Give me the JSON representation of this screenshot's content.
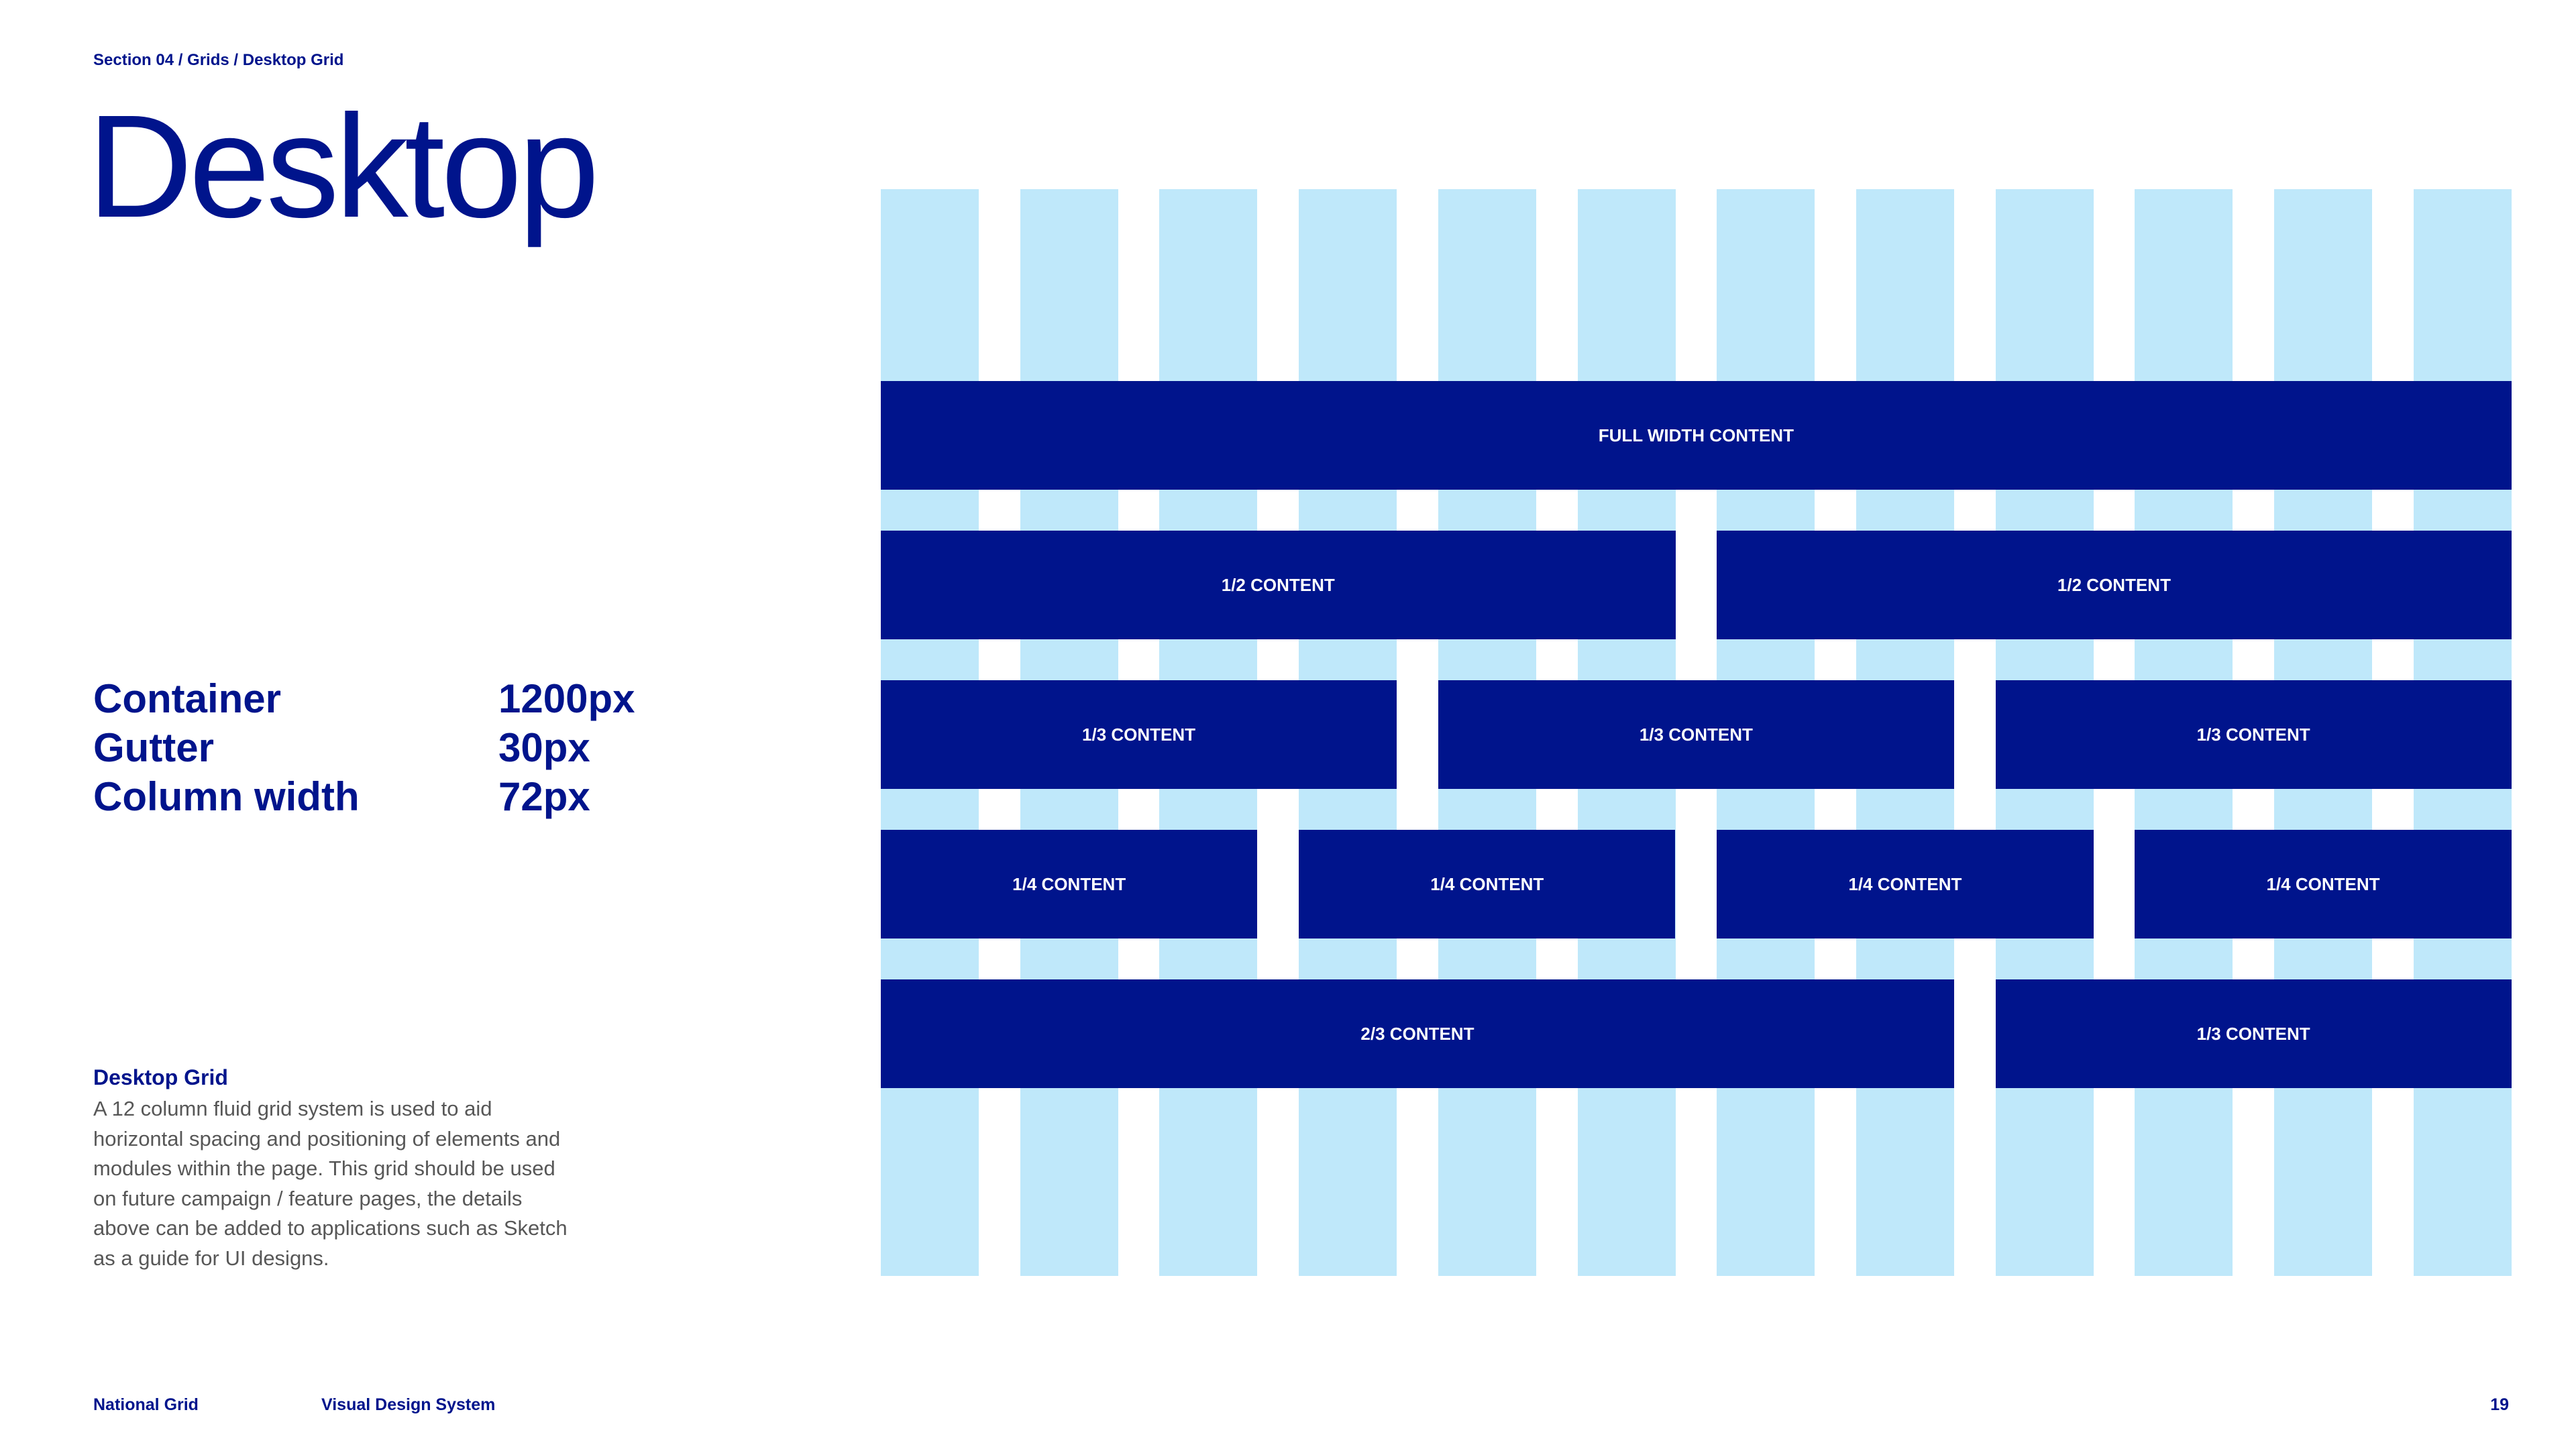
{
  "breadcrumb": "Section 04 / Grids / Desktop Grid",
  "title": "Desktop",
  "specs": [
    {
      "label": "Container",
      "value": "1200px"
    },
    {
      "label": "Gutter",
      "value": "30px"
    },
    {
      "label": "Column width",
      "value": "72px"
    }
  ],
  "description": {
    "title": "Desktop Grid",
    "lines": [
      "A 12 column fluid grid system is used to aid",
      "horizontal spacing and positioning of elements and",
      "modules within the page. This grid should be used",
      "on future campaign / feature pages, the details",
      "above can be added to applications such as Sketch",
      "as a guide for UI designs."
    ]
  },
  "grid": {
    "column_count": 12,
    "rows": [
      [
        {
          "span": 12,
          "label": "FULL WIDTH CONTENT"
        }
      ],
      [
        {
          "span": 6,
          "label": "1/2 CONTENT"
        },
        {
          "span": 6,
          "label": "1/2 CONTENT"
        }
      ],
      [
        {
          "span": 4,
          "label": "1/3 CONTENT"
        },
        {
          "span": 4,
          "label": "1/3 CONTENT"
        },
        {
          "span": 4,
          "label": "1/3 CONTENT"
        }
      ],
      [
        {
          "span": 3,
          "label": "1/4 CONTENT"
        },
        {
          "span": 3,
          "label": "1/4 CONTENT"
        },
        {
          "span": 3,
          "label": "1/4 CONTENT"
        },
        {
          "span": 3,
          "label": "1/4 CONTENT"
        }
      ],
      [
        {
          "span": 8,
          "label": "2/3 CONTENT"
        },
        {
          "span": 4,
          "label": "1/3 CONTENT"
        }
      ]
    ]
  },
  "footer": {
    "brand": "National Grid",
    "doc_title": "Visual Design System",
    "page_number": "19"
  },
  "colors": {
    "brand_blue": "#00148c",
    "column_blue": "#bfe8fa",
    "body_text": "#575757"
  }
}
